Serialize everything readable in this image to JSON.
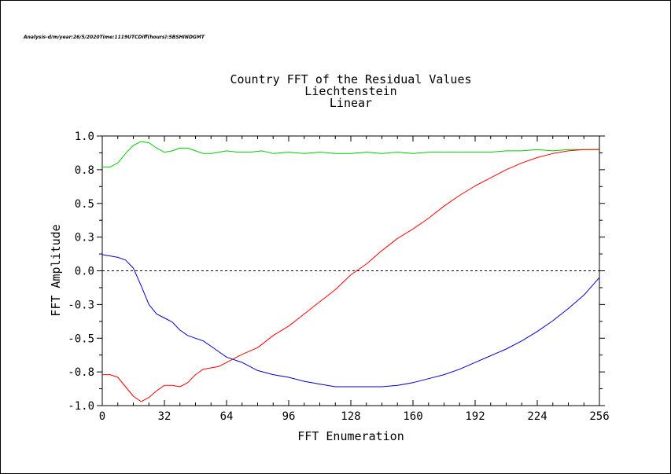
{
  "meta_line": "Analysis-d/m/year:26/5/2020Time:1119UTCDiff(hours):5BSHINDGMT",
  "chart_data": {
    "type": "line",
    "title": [
      "Country FFT of the Residual Values",
      "Liechtenstein",
      "Linear"
    ],
    "xlabel": "FFT Enumeration",
    "ylabel": "FFT Amplitude",
    "xlim": [
      0,
      256
    ],
    "ylim": [
      -1.0,
      1.0
    ],
    "xticks": [
      0,
      32,
      64,
      96,
      128,
      160,
      192,
      224,
      256
    ],
    "xtick_labels": [
      "0",
      "32",
      "64",
      "96",
      "128",
      "160",
      "192",
      "224",
      "256"
    ],
    "yticks": [
      1.0,
      0.75,
      0.5,
      0.25,
      0.0,
      -0.25,
      -0.5,
      -0.75,
      -1.0
    ],
    "ytick_labels": [
      "1.0",
      "0.8",
      "0.5",
      "0.3",
      "0.0",
      "-0.3",
      "-0.5",
      "-0.8",
      "-1.0"
    ],
    "zero_line": true,
    "grid": false,
    "series": [
      {
        "color": "#00cc00",
        "x": [
          0,
          4,
          8,
          12,
          16,
          20,
          24,
          28,
          32,
          36,
          40,
          44,
          48,
          52,
          56,
          60,
          64,
          70,
          76,
          82,
          88,
          96,
          104,
          112,
          120,
          128,
          136,
          144,
          152,
          160,
          168,
          176,
          184,
          192,
          200,
          208,
          216,
          224,
          232,
          240,
          248,
          256
        ],
        "y": [
          0.77,
          0.77,
          0.8,
          0.87,
          0.93,
          0.96,
          0.95,
          0.91,
          0.88,
          0.89,
          0.91,
          0.91,
          0.89,
          0.87,
          0.87,
          0.88,
          0.89,
          0.88,
          0.88,
          0.89,
          0.87,
          0.88,
          0.87,
          0.88,
          0.87,
          0.87,
          0.88,
          0.87,
          0.88,
          0.87,
          0.88,
          0.88,
          0.88,
          0.88,
          0.88,
          0.89,
          0.89,
          0.9,
          0.89,
          0.9,
          0.9,
          0.9
        ]
      },
      {
        "color": "#ff0000",
        "x": [
          0,
          4,
          8,
          12,
          16,
          20,
          24,
          28,
          32,
          36,
          40,
          44,
          48,
          52,
          56,
          60,
          64,
          72,
          80,
          88,
          96,
          104,
          112,
          120,
          128,
          136,
          144,
          152,
          160,
          168,
          176,
          184,
          192,
          200,
          208,
          216,
          224,
          232,
          240,
          248,
          256
        ],
        "y": [
          -0.77,
          -0.77,
          -0.79,
          -0.86,
          -0.93,
          -0.97,
          -0.94,
          -0.89,
          -0.85,
          -0.85,
          -0.86,
          -0.83,
          -0.77,
          -0.73,
          -0.72,
          -0.71,
          -0.68,
          -0.62,
          -0.57,
          -0.48,
          -0.41,
          -0.32,
          -0.23,
          -0.14,
          -0.03,
          0.05,
          0.15,
          0.24,
          0.31,
          0.39,
          0.48,
          0.56,
          0.63,
          0.69,
          0.75,
          0.8,
          0.84,
          0.87,
          0.89,
          0.9,
          0.9
        ]
      },
      {
        "color": "#0000cc",
        "x": [
          0,
          4,
          8,
          12,
          16,
          20,
          24,
          28,
          32,
          36,
          40,
          44,
          48,
          52,
          56,
          60,
          64,
          72,
          80,
          88,
          96,
          104,
          112,
          120,
          128,
          136,
          144,
          152,
          160,
          168,
          176,
          184,
          192,
          200,
          208,
          216,
          224,
          232,
          240,
          248,
          256
        ],
        "y": [
          0.12,
          0.11,
          0.1,
          0.08,
          0.02,
          -0.11,
          -0.25,
          -0.32,
          -0.35,
          -0.38,
          -0.44,
          -0.48,
          -0.5,
          -0.52,
          -0.56,
          -0.6,
          -0.64,
          -0.68,
          -0.74,
          -0.77,
          -0.79,
          -0.82,
          -0.84,
          -0.86,
          -0.86,
          -0.86,
          -0.86,
          -0.85,
          -0.83,
          -0.8,
          -0.77,
          -0.73,
          -0.68,
          -0.63,
          -0.58,
          -0.52,
          -0.45,
          -0.37,
          -0.28,
          -0.18,
          -0.05
        ]
      }
    ]
  }
}
